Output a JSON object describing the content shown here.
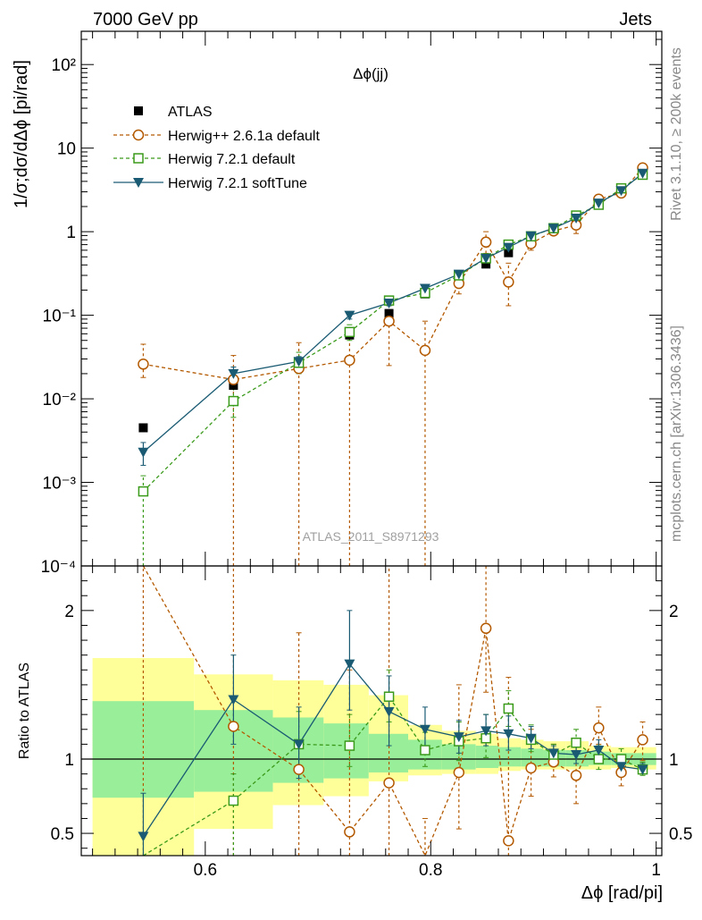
{
  "header": {
    "left": "7000 GeV pp",
    "right": "Jets"
  },
  "side_text": {
    "top": "Rivet 3.1.10, ≥ 200k events",
    "bottom": "mcplots.cern.ch [arXiv:1306.3436]"
  },
  "chart_data": {
    "type": "line",
    "title": "Δϕ(jj)",
    "watermark": "ATLAS_2011_S8971293",
    "xlabel": "Δϕ [rad/pi]",
    "ylabel_top": "1/σ;dσ/dΔϕ [pi/rad]",
    "ylabel_bottom": "Ratio to ATLAS",
    "xlim": [
      0.49,
      1.005
    ],
    "xticks": [
      "0.6",
      "0.8",
      "1"
    ],
    "ylim_top": [
      0.0001,
      250
    ],
    "yscale_top": "log",
    "yticks_top": [
      "10⁻⁴",
      "10⁻³",
      "10⁻²",
      "10⁻¹",
      "1",
      "10",
      "10²"
    ],
    "ylim_bottom": [
      0.35,
      2.3
    ],
    "yticks_bottom": [
      "0.5",
      "1",
      "2"
    ],
    "legend_position": "top-left",
    "x": [
      0.545,
      0.625,
      0.683,
      0.728,
      0.763,
      0.795,
      0.825,
      0.849,
      0.869,
      0.889,
      0.909,
      0.929,
      0.949,
      0.969,
      0.988
    ],
    "series": [
      {
        "name": "ATLAS",
        "color": "#000000",
        "marker": "filled-square",
        "values": [
          0.0045,
          0.0145,
          0.025,
          0.058,
          0.105,
          0.18,
          0.27,
          0.41,
          0.56,
          0.78,
          1.07,
          1.4,
          2.1,
          3.2,
          5.2
        ]
      },
      {
        "name": "Herwig++ 2.6.1a default",
        "color": "#b35900",
        "marker": "open-circle",
        "dash": "dashed",
        "values": [
          0.026,
          0.017,
          0.023,
          0.029,
          0.085,
          0.038,
          0.24,
          0.75,
          0.25,
          0.72,
          1.02,
          1.2,
          2.45,
          2.9,
          5.8
        ],
        "ratio": [
          5.8,
          1.22,
          0.93,
          0.51,
          0.84,
          0.25,
          0.91,
          1.88,
          0.45,
          0.94,
          0.98,
          0.89,
          1.21,
          0.91,
          1.13
        ]
      },
      {
        "name": "Herwig 7.2.1 default",
        "color": "#3a9a1a",
        "marker": "open-square",
        "dash": "dashed",
        "values": [
          0.00078,
          0.0094,
          0.027,
          0.063,
          0.15,
          0.185,
          0.3,
          0.48,
          0.7,
          0.88,
          1.1,
          1.56,
          2.1,
          3.3,
          4.8
        ],
        "ratio": [
          0.17,
          0.72,
          1.1,
          1.09,
          1.42,
          1.06,
          1.12,
          1.14,
          1.34,
          1.13,
          1.03,
          1.11,
          1.0,
          1.0,
          0.93
        ]
      },
      {
        "name": "Herwig 7.2.1 softTune",
        "color": "#1a5b73",
        "marker": "filled-triangle-down",
        "dash": "solid",
        "values": [
          0.0023,
          0.02,
          0.028,
          0.1,
          0.14,
          0.21,
          0.31,
          0.48,
          0.65,
          0.89,
          1.1,
          1.45,
          2.2,
          3.1,
          5.0
        ],
        "ratio": [
          0.48,
          1.4,
          1.1,
          1.64,
          1.32,
          1.2,
          1.15,
          1.19,
          1.17,
          1.14,
          1.04,
          1.03,
          1.06,
          0.95,
          0.93
        ]
      }
    ],
    "error_bars": {
      "herwig_pp_top": [
        [
          0.018,
          0.045
        ],
        [
          0.0001,
          0.033
        ],
        [
          0.0001,
          0.047
        ],
        [
          0.0001,
          0.065
        ],
        [
          0.025,
          0.16
        ],
        [
          0.0001,
          0.085
        ],
        [
          0.18,
          0.31
        ],
        [
          0.55,
          1.0
        ],
        [
          0.13,
          0.42
        ],
        [
          0.6,
          0.85
        ],
        [
          0.95,
          1.1
        ],
        [
          0.95,
          1.45
        ],
        [
          2.2,
          2.7
        ],
        [
          2.7,
          3.15
        ],
        [
          5.3,
          6.3
        ]
      ],
      "herwig7_top": [
        [
          0.0001,
          0.0012
        ],
        [
          0.006,
          0.013
        ],
        [
          0.02,
          0.036
        ],
        [
          0.05,
          0.077
        ],
        [
          0.13,
          0.17
        ],
        [
          0.17,
          0.2
        ],
        [
          0.27,
          0.33
        ],
        [
          0.43,
          0.53
        ],
        [
          0.64,
          0.77
        ],
        [
          0.82,
          0.94
        ],
        [
          1.04,
          1.17
        ],
        [
          1.48,
          1.64
        ],
        [
          1.98,
          2.24
        ],
        [
          3.1,
          3.45
        ],
        [
          4.6,
          5.0
        ]
      ],
      "softtune_top": [
        [
          0.0016,
          0.003
        ],
        [
          0.016,
          0.024
        ],
        [
          0.024,
          0.032
        ],
        [
          0.09,
          0.11
        ],
        [
          0.13,
          0.155
        ],
        [
          0.195,
          0.225
        ],
        [
          0.29,
          0.33
        ],
        [
          0.45,
          0.51
        ],
        [
          0.62,
          0.68
        ],
        [
          0.85,
          0.93
        ],
        [
          1.06,
          1.14
        ],
        [
          1.4,
          1.5
        ],
        [
          2.12,
          2.28
        ],
        [
          3.0,
          3.2
        ],
        [
          4.85,
          5.15
        ]
      ],
      "herwig_pp_ratio": [
        [
          0.35,
          2.3
        ],
        [
          0.35,
          2.3
        ],
        [
          0.35,
          1.85
        ],
        [
          0.35,
          1.6
        ],
        [
          0.35,
          2.3
        ],
        [
          0.35,
          0.6
        ],
        [
          0.53,
          1.5
        ],
        [
          1.45,
          2.3
        ],
        [
          0.35,
          1.55
        ],
        [
          0.75,
          1.2
        ],
        [
          0.88,
          1.1
        ],
        [
          0.7,
          1.1
        ],
        [
          1.1,
          1.35
        ],
        [
          0.82,
          1.0
        ],
        [
          0.99,
          1.25
        ]
      ],
      "herwig7_ratio": [
        [
          0.35,
          0.35
        ],
        [
          0.35,
          0.9
        ],
        [
          0.95,
          1.32
        ],
        [
          0.95,
          1.3
        ],
        [
          1.25,
          1.6
        ],
        [
          0.95,
          1.18
        ],
        [
          0.99,
          1.25
        ],
        [
          1.01,
          1.3
        ],
        [
          1.22,
          1.46
        ],
        [
          1.05,
          1.23
        ],
        [
          0.97,
          1.1
        ],
        [
          1.04,
          1.2
        ],
        [
          0.93,
          1.09
        ],
        [
          0.94,
          1.07
        ],
        [
          0.89,
          0.98
        ]
      ],
      "softtune_ratio": [
        [
          0.35,
          0.77
        ],
        [
          1.1,
          1.7
        ],
        [
          0.87,
          1.35
        ],
        [
          1.33,
          2.0
        ],
        [
          1.09,
          1.56
        ],
        [
          1.04,
          1.35
        ],
        [
          1.04,
          1.26
        ],
        [
          1.09,
          1.3
        ],
        [
          1.06,
          1.29
        ],
        [
          1.07,
          1.22
        ],
        [
          0.99,
          1.09
        ],
        [
          0.97,
          1.09
        ],
        [
          0.99,
          1.13
        ],
        [
          0.9,
          1.0
        ],
        [
          0.9,
          0.97
        ]
      ]
    },
    "data_bands": {
      "edges": [
        0.5,
        0.59,
        0.66,
        0.705,
        0.745,
        0.78,
        0.81,
        0.84,
        0.86,
        0.88,
        0.9,
        0.92,
        0.94,
        0.96,
        0.98,
        1.0
      ],
      "stat_sys_outer": [
        [
          0.35,
          1.68
        ],
        [
          0.53,
          1.57
        ],
        [
          0.69,
          1.53
        ],
        [
          0.75,
          1.5
        ],
        [
          0.85,
          1.43
        ],
        [
          0.89,
          1.23
        ],
        [
          0.9,
          1.19
        ],
        [
          0.9,
          1.17
        ],
        [
          0.92,
          1.14
        ],
        [
          0.93,
          1.13
        ],
        [
          0.93,
          1.12
        ],
        [
          0.93,
          1.12
        ],
        [
          0.93,
          1.09
        ],
        [
          0.94,
          1.08
        ],
        [
          0.93,
          1.08
        ]
      ],
      "stat_inner": [
        [
          0.74,
          1.39
        ],
        [
          0.78,
          1.33
        ],
        [
          0.84,
          1.28
        ],
        [
          0.87,
          1.24
        ],
        [
          0.91,
          1.17
        ],
        [
          0.93,
          1.13
        ],
        [
          0.93,
          1.1
        ],
        [
          0.94,
          1.09
        ],
        [
          0.95,
          1.08
        ],
        [
          0.95,
          1.07
        ],
        [
          0.95,
          1.06
        ],
        [
          0.95,
          1.06
        ],
        [
          0.96,
          1.05
        ],
        [
          0.96,
          1.04
        ],
        [
          0.96,
          1.04
        ]
      ],
      "colors": {
        "outer": "#ffff99",
        "inner": "#99ee99"
      }
    }
  }
}
